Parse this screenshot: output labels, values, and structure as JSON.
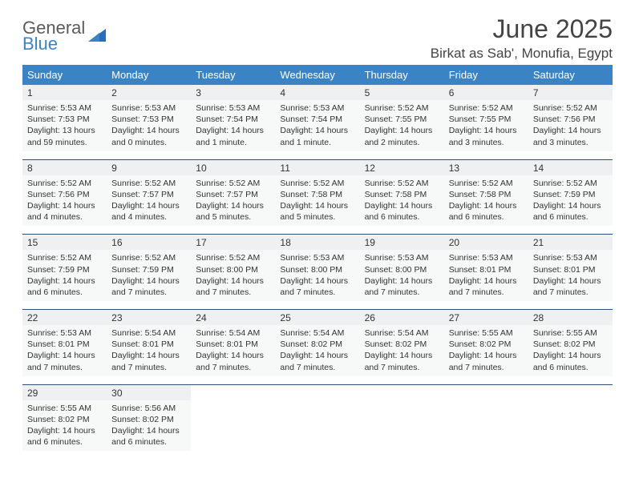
{
  "logo": {
    "line1": "General",
    "line2": "Blue"
  },
  "title": "June 2025",
  "location": "Birkat as Sab', Monufia, Egypt",
  "colors": {
    "header_bg": "#3a84c6",
    "header_text": "#ffffff",
    "daynum_bg": "#eef0f1",
    "daydata_bg": "#f7f8f8",
    "sep_color": "#2d517a",
    "title_color": "#444444",
    "text_color": "#333333"
  },
  "dow": [
    "Sunday",
    "Monday",
    "Tuesday",
    "Wednesday",
    "Thursday",
    "Friday",
    "Saturday"
  ],
  "weeks": [
    [
      {
        "n": "1",
        "sr": "Sunrise: 5:53 AM",
        "ss": "Sunset: 7:53 PM",
        "d1": "Daylight: 13 hours",
        "d2": "and 59 minutes."
      },
      {
        "n": "2",
        "sr": "Sunrise: 5:53 AM",
        "ss": "Sunset: 7:53 PM",
        "d1": "Daylight: 14 hours",
        "d2": "and 0 minutes."
      },
      {
        "n": "3",
        "sr": "Sunrise: 5:53 AM",
        "ss": "Sunset: 7:54 PM",
        "d1": "Daylight: 14 hours",
        "d2": "and 1 minute."
      },
      {
        "n": "4",
        "sr": "Sunrise: 5:53 AM",
        "ss": "Sunset: 7:54 PM",
        "d1": "Daylight: 14 hours",
        "d2": "and 1 minute."
      },
      {
        "n": "5",
        "sr": "Sunrise: 5:52 AM",
        "ss": "Sunset: 7:55 PM",
        "d1": "Daylight: 14 hours",
        "d2": "and 2 minutes."
      },
      {
        "n": "6",
        "sr": "Sunrise: 5:52 AM",
        "ss": "Sunset: 7:55 PM",
        "d1": "Daylight: 14 hours",
        "d2": "and 3 minutes."
      },
      {
        "n": "7",
        "sr": "Sunrise: 5:52 AM",
        "ss": "Sunset: 7:56 PM",
        "d1": "Daylight: 14 hours",
        "d2": "and 3 minutes."
      }
    ],
    [
      {
        "n": "8",
        "sr": "Sunrise: 5:52 AM",
        "ss": "Sunset: 7:56 PM",
        "d1": "Daylight: 14 hours",
        "d2": "and 4 minutes."
      },
      {
        "n": "9",
        "sr": "Sunrise: 5:52 AM",
        "ss": "Sunset: 7:57 PM",
        "d1": "Daylight: 14 hours",
        "d2": "and 4 minutes."
      },
      {
        "n": "10",
        "sr": "Sunrise: 5:52 AM",
        "ss": "Sunset: 7:57 PM",
        "d1": "Daylight: 14 hours",
        "d2": "and 5 minutes."
      },
      {
        "n": "11",
        "sr": "Sunrise: 5:52 AM",
        "ss": "Sunset: 7:58 PM",
        "d1": "Daylight: 14 hours",
        "d2": "and 5 minutes."
      },
      {
        "n": "12",
        "sr": "Sunrise: 5:52 AM",
        "ss": "Sunset: 7:58 PM",
        "d1": "Daylight: 14 hours",
        "d2": "and 6 minutes."
      },
      {
        "n": "13",
        "sr": "Sunrise: 5:52 AM",
        "ss": "Sunset: 7:58 PM",
        "d1": "Daylight: 14 hours",
        "d2": "and 6 minutes."
      },
      {
        "n": "14",
        "sr": "Sunrise: 5:52 AM",
        "ss": "Sunset: 7:59 PM",
        "d1": "Daylight: 14 hours",
        "d2": "and 6 minutes."
      }
    ],
    [
      {
        "n": "15",
        "sr": "Sunrise: 5:52 AM",
        "ss": "Sunset: 7:59 PM",
        "d1": "Daylight: 14 hours",
        "d2": "and 6 minutes."
      },
      {
        "n": "16",
        "sr": "Sunrise: 5:52 AM",
        "ss": "Sunset: 7:59 PM",
        "d1": "Daylight: 14 hours",
        "d2": "and 7 minutes."
      },
      {
        "n": "17",
        "sr": "Sunrise: 5:52 AM",
        "ss": "Sunset: 8:00 PM",
        "d1": "Daylight: 14 hours",
        "d2": "and 7 minutes."
      },
      {
        "n": "18",
        "sr": "Sunrise: 5:53 AM",
        "ss": "Sunset: 8:00 PM",
        "d1": "Daylight: 14 hours",
        "d2": "and 7 minutes."
      },
      {
        "n": "19",
        "sr": "Sunrise: 5:53 AM",
        "ss": "Sunset: 8:00 PM",
        "d1": "Daylight: 14 hours",
        "d2": "and 7 minutes."
      },
      {
        "n": "20",
        "sr": "Sunrise: 5:53 AM",
        "ss": "Sunset: 8:01 PM",
        "d1": "Daylight: 14 hours",
        "d2": "and 7 minutes."
      },
      {
        "n": "21",
        "sr": "Sunrise: 5:53 AM",
        "ss": "Sunset: 8:01 PM",
        "d1": "Daylight: 14 hours",
        "d2": "and 7 minutes."
      }
    ],
    [
      {
        "n": "22",
        "sr": "Sunrise: 5:53 AM",
        "ss": "Sunset: 8:01 PM",
        "d1": "Daylight: 14 hours",
        "d2": "and 7 minutes."
      },
      {
        "n": "23",
        "sr": "Sunrise: 5:54 AM",
        "ss": "Sunset: 8:01 PM",
        "d1": "Daylight: 14 hours",
        "d2": "and 7 minutes."
      },
      {
        "n": "24",
        "sr": "Sunrise: 5:54 AM",
        "ss": "Sunset: 8:01 PM",
        "d1": "Daylight: 14 hours",
        "d2": "and 7 minutes."
      },
      {
        "n": "25",
        "sr": "Sunrise: 5:54 AM",
        "ss": "Sunset: 8:02 PM",
        "d1": "Daylight: 14 hours",
        "d2": "and 7 minutes."
      },
      {
        "n": "26",
        "sr": "Sunrise: 5:54 AM",
        "ss": "Sunset: 8:02 PM",
        "d1": "Daylight: 14 hours",
        "d2": "and 7 minutes."
      },
      {
        "n": "27",
        "sr": "Sunrise: 5:55 AM",
        "ss": "Sunset: 8:02 PM",
        "d1": "Daylight: 14 hours",
        "d2": "and 7 minutes."
      },
      {
        "n": "28",
        "sr": "Sunrise: 5:55 AM",
        "ss": "Sunset: 8:02 PM",
        "d1": "Daylight: 14 hours",
        "d2": "and 6 minutes."
      }
    ],
    [
      {
        "n": "29",
        "sr": "Sunrise: 5:55 AM",
        "ss": "Sunset: 8:02 PM",
        "d1": "Daylight: 14 hours",
        "d2": "and 6 minutes."
      },
      {
        "n": "30",
        "sr": "Sunrise: 5:56 AM",
        "ss": "Sunset: 8:02 PM",
        "d1": "Daylight: 14 hours",
        "d2": "and 6 minutes."
      },
      null,
      null,
      null,
      null,
      null
    ]
  ]
}
